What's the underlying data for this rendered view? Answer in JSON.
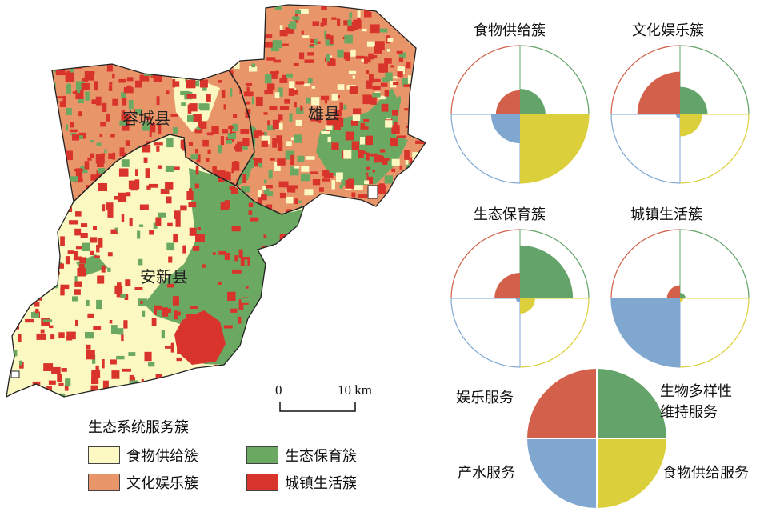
{
  "map": {
    "counties": [
      {
        "name": "容城县"
      },
      {
        "name": "雄县"
      },
      {
        "name": "安新县"
      }
    ]
  },
  "scalebar": {
    "left_label": "0",
    "right_label": "10 km"
  },
  "legend": {
    "title": "生态系统服务簇",
    "items": [
      {
        "label": "食物供给簇",
        "color": "#fbf8c2"
      },
      {
        "label": "生态保育簇",
        "color": "#6ba862"
      },
      {
        "label": "文化娱乐簇",
        "color": "#e9956a"
      },
      {
        "label": "城镇生活簇",
        "color": "#d9342b"
      }
    ]
  },
  "colors": {
    "food_cluster": "#fbf8c2",
    "culture_cluster": "#e9956a",
    "eco_cluster": "#6ba862",
    "urban_cluster": "#d9342b",
    "service_recreation": "#d2604a",
    "service_biodiversity": "#64a46a",
    "service_food": "#dccf3c",
    "service_water": "#7fa7d0"
  },
  "chart_data": {
    "type": "rose",
    "services": [
      "娱乐服务",
      "生物多样性维持服务",
      "食物供给服务",
      "产水服务"
    ],
    "clusters": [
      {
        "name": "食物供给簇",
        "values": [
          0.35,
          0.37,
          1.0,
          0.42
        ]
      },
      {
        "name": "文化娱乐簇",
        "values": [
          0.62,
          0.4,
          0.32,
          0.06
        ]
      },
      {
        "name": "生态保育簇",
        "values": [
          0.37,
          0.77,
          0.22,
          0.06
        ]
      },
      {
        "name": "城镇生活簇",
        "values": [
          0.19,
          0.08,
          0.05,
          1.0
        ]
      }
    ],
    "key": {
      "labels": [
        "娱乐服务",
        "生物多样性\n维持服务",
        "食物供给服务",
        "产水服务"
      ]
    }
  }
}
